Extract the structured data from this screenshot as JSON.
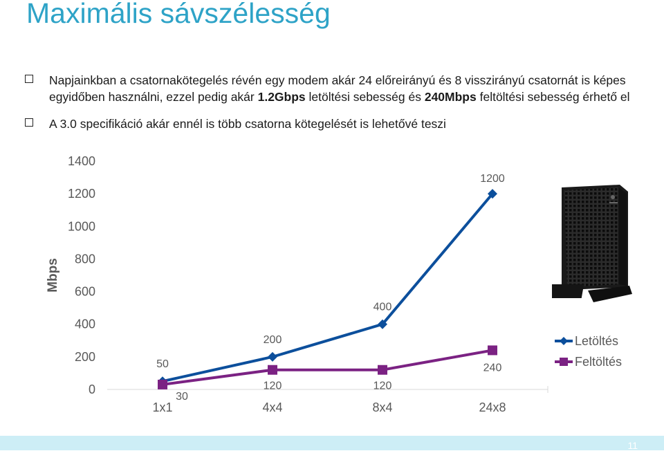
{
  "slide": {
    "title": "Maximális sávszélesség",
    "bullets": [
      {
        "parts": [
          {
            "text": "Napjainkban a csatornakötegelés révén egy modem akár 24 előreirányú és 8 visszirányú csatornát is képes egyidőben használni, ezzel pedig akár ",
            "bold": false
          },
          {
            "text": "1.2Gbps",
            "bold": true
          },
          {
            "text": " letöltési sebesség és ",
            "bold": false
          },
          {
            "text": "240Mbps",
            "bold": true
          },
          {
            "text": " feltöltési sebesség érhető el",
            "bold": false
          }
        ]
      },
      {
        "parts": [
          {
            "text": "A 3.0 specifikáció akár ennél is több csatorna kötegelését is lehetővé teszi",
            "bold": false
          }
        ]
      }
    ],
    "page_number": "11",
    "colors": {
      "title": "#2ea3c7",
      "download": "#0c4f9c",
      "upload": "#7b2283",
      "footer": "#cdeef6"
    },
    "image": "cable-modem-photo"
  },
  "chart_data": {
    "type": "line",
    "categories": [
      "1x1",
      "4x4",
      "8x4",
      "24x8"
    ],
    "series": [
      {
        "name": "Letöltés",
        "values": [
          50,
          200,
          400,
          1200
        ],
        "labels": [
          "50",
          "200",
          "400",
          "1200"
        ],
        "color": "#0c4f9c",
        "marker": "diamond"
      },
      {
        "name": "Feltöltés",
        "values": [
          30,
          120,
          120,
          240
        ],
        "labels": [
          "30",
          "120",
          "120",
          "240"
        ],
        "color": "#7b2283",
        "marker": "square"
      }
    ],
    "ylabel": "Mbps",
    "xlabel": "",
    "ylim": [
      0,
      1400
    ],
    "yticks": [
      "0",
      "200",
      "400",
      "600",
      "800",
      "1000",
      "1200",
      "1400"
    ],
    "grid": false,
    "legend": "right"
  }
}
